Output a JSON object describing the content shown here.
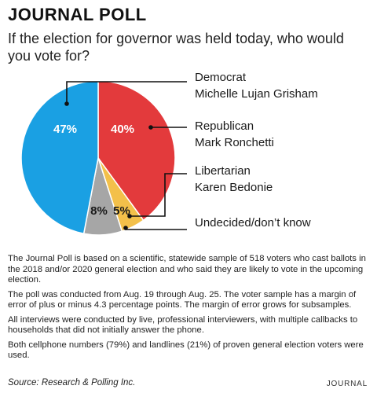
{
  "header": {
    "title": "JOURNAL POLL",
    "question": "If the election for governor was held today, who would you vote for?"
  },
  "chart_data": {
    "type": "pie",
    "title": "JOURNAL POLL",
    "slices": [
      {
        "label": "Democrat",
        "sublabel": "Michelle Lujan Grisham",
        "value": 47,
        "display": "47%",
        "color": "#1aa0e3",
        "text_color": "#ffffff"
      },
      {
        "label": "Republican",
        "sublabel": "Mark Ronchetti",
        "value": 40,
        "display": "40%",
        "color": "#e33a3c",
        "text_color": "#ffffff"
      },
      {
        "label": "Libertarian",
        "sublabel": "Karen Bedonie",
        "value": 5,
        "display": "5%",
        "color": "#f3c04a",
        "text_color": "#1a1a1a"
      },
      {
        "label": "Undecided/don’t know",
        "sublabel": "",
        "value": 8,
        "display": "8%",
        "color": "#a6a6a6",
        "text_color": "#1a1a1a"
      }
    ]
  },
  "notes": [
    "The Journal Poll is based on a scientific, statewide sample of 518 voters who cast ballots in the 2018 and/or 2020 general election and who said they are likely to vote in the upcoming election.",
    "The poll was conducted from Aug. 19 through Aug. 25. The voter sample has a margin of error of plus or minus 4.3 percentage points. The margin of error grows for subsamples.",
    "All interviews were conducted by live, professional interviewers, with multiple callbacks to households that did not initially answer the phone.",
    "Both cellphone numbers (79%) and landlines (21%) of proven general election voters were used."
  ],
  "footer": {
    "source": "Source: Research & Polling Inc.",
    "credit": "JOURNAL"
  }
}
